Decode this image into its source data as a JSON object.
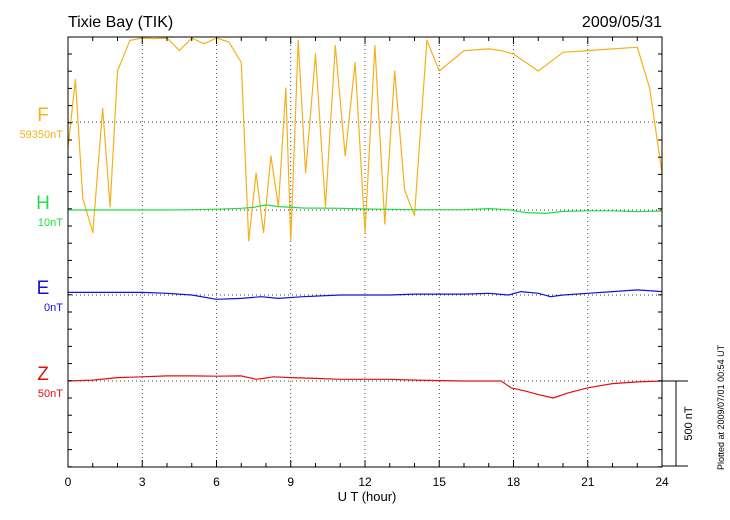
{
  "chart_data": {
    "type": "line",
    "title_left": "Tixie Bay (TIK)",
    "title_right": "2009/05/31",
    "xlabel": "U T (hour)",
    "xlim": [
      0,
      24
    ],
    "xticks": [
      "0",
      "3",
      "6",
      "9",
      "12",
      "15",
      "18",
      "21",
      "24"
    ],
    "grid": true,
    "plotted_note": "Plotted at 2009/07/01 00:54 UT",
    "scale_bar": {
      "label": "500 nT",
      "value_nT": 500
    },
    "series": [
      {
        "name": "F",
        "baseline_label": "59350nT",
        "color": "#f5b01a",
        "x": [
          0,
          0.3,
          0.6,
          1.0,
          1.4,
          1.7,
          2.0,
          2.5,
          3.0,
          3.5,
          4.0,
          4.5,
          5.0,
          5.5,
          6.0,
          6.5,
          7.0,
          7.3,
          7.6,
          7.9,
          8.2,
          8.5,
          8.8,
          9.0,
          9.3,
          9.6,
          10.0,
          10.4,
          10.8,
          11.2,
          11.6,
          12.0,
          12.4,
          12.8,
          13.2,
          13.6,
          14.0,
          14.5,
          15.0,
          16.0,
          17.0,
          17.5,
          18.0,
          19.0,
          20.0,
          21.0,
          22.0,
          23.0,
          23.5,
          24.0
        ],
        "y": [
          -150,
          250,
          -450,
          -650,
          80,
          -500,
          300,
          480,
          500,
          490,
          500,
          420,
          500,
          460,
          500,
          470,
          350,
          -700,
          -300,
          -650,
          -200,
          -500,
          200,
          -700,
          480,
          -300,
          400,
          -500,
          450,
          -200,
          350,
          -650,
          450,
          -600,
          300,
          -400,
          -550,
          480,
          300,
          420,
          430,
          420,
          400,
          300,
          410,
          420,
          430,
          440,
          200,
          -300
        ]
      },
      {
        "name": "H",
        "baseline_label": "10nT",
        "color": "#22dd44",
        "x": [
          0,
          2,
          4,
          5,
          6,
          7,
          7.5,
          8.0,
          8.5,
          9.5,
          11,
          12,
          13,
          14,
          16,
          17,
          17.8,
          18.5,
          19.3,
          20,
          21,
          22,
          23,
          24
        ],
        "y": [
          0,
          0,
          0,
          2,
          5,
          10,
          15,
          30,
          20,
          12,
          10,
          6,
          4,
          2,
          2,
          8,
          2,
          -15,
          -20,
          -8,
          -5,
          -5,
          -10,
          -6
        ]
      },
      {
        "name": "E",
        "baseline_label": "0nT",
        "color": "#1010e0",
        "x": [
          0,
          1,
          2,
          3,
          4,
          5,
          6,
          7,
          7.8,
          8.5,
          9.5,
          11,
          12,
          13,
          14,
          16,
          17,
          17.8,
          18.3,
          19,
          19.5,
          20,
          21,
          22,
          23,
          24
        ],
        "y": [
          15,
          15,
          15,
          15,
          10,
          0,
          -25,
          -20,
          -10,
          -20,
          -10,
          0,
          0,
          0,
          5,
          5,
          10,
          0,
          20,
          10,
          -10,
          0,
          10,
          20,
          30,
          20
        ]
      },
      {
        "name": "Z",
        "baseline_label": "50nT",
        "color": "#e01010",
        "x": [
          0,
          1,
          2,
          3,
          4,
          5,
          6,
          7,
          7.6,
          7.9,
          8.3,
          9,
          10,
          11,
          12,
          13,
          14,
          16,
          17.5,
          17.9,
          18.5,
          19.0,
          19.6,
          20.2,
          21,
          22,
          23,
          24
        ],
        "y": [
          0,
          5,
          20,
          25,
          30,
          30,
          28,
          30,
          10,
          15,
          25,
          20,
          15,
          10,
          10,
          10,
          5,
          0,
          0,
          -40,
          -60,
          -80,
          -100,
          -70,
          -40,
          -15,
          -5,
          0
        ]
      }
    ]
  }
}
